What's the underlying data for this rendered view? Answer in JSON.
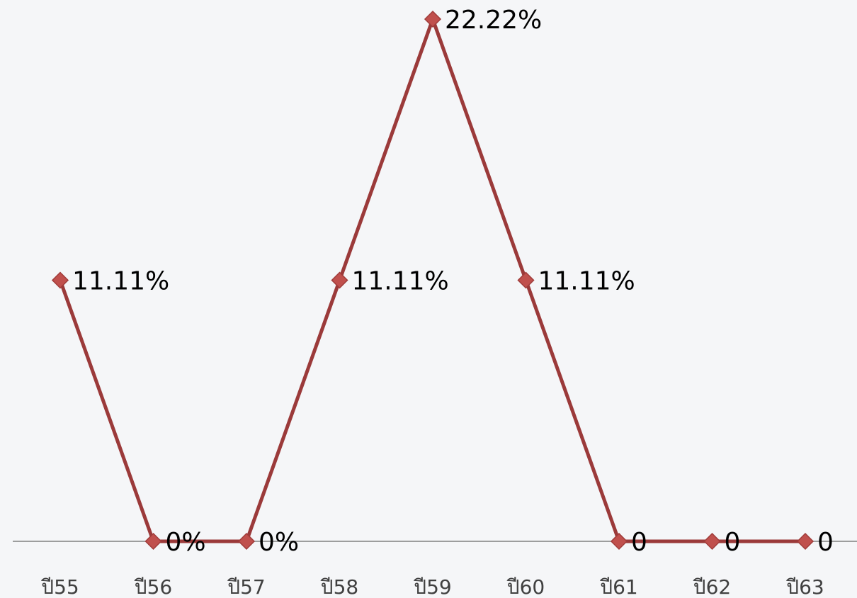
{
  "colors": {
    "background": "#f5f6f8",
    "line": "#9b3a3a",
    "marker_fill": "#c0504d",
    "marker_stroke": "#a03c3a",
    "axis": "#808080",
    "text": "#000000",
    "tick_text": "#404040"
  },
  "chart_data": {
    "type": "line",
    "title": "",
    "xlabel": "",
    "ylabel": "",
    "categories": [
      "ปี55",
      "ปี56",
      "ปี57",
      "ปี58",
      "ปี59",
      "ปี60",
      "ปี61",
      "ปี62",
      "ปี63"
    ],
    "ylim": [
      0,
      22.22
    ],
    "grid": false,
    "legend": "none",
    "series": [
      {
        "values": [
          11.11,
          0,
          0,
          11.11,
          22.22,
          11.11,
          0,
          0,
          0
        ],
        "data_labels": [
          "11.11%",
          "0%",
          "0%",
          "11.11%",
          "22.22%",
          "11.11%",
          "0",
          "0",
          "0"
        ]
      }
    ]
  }
}
